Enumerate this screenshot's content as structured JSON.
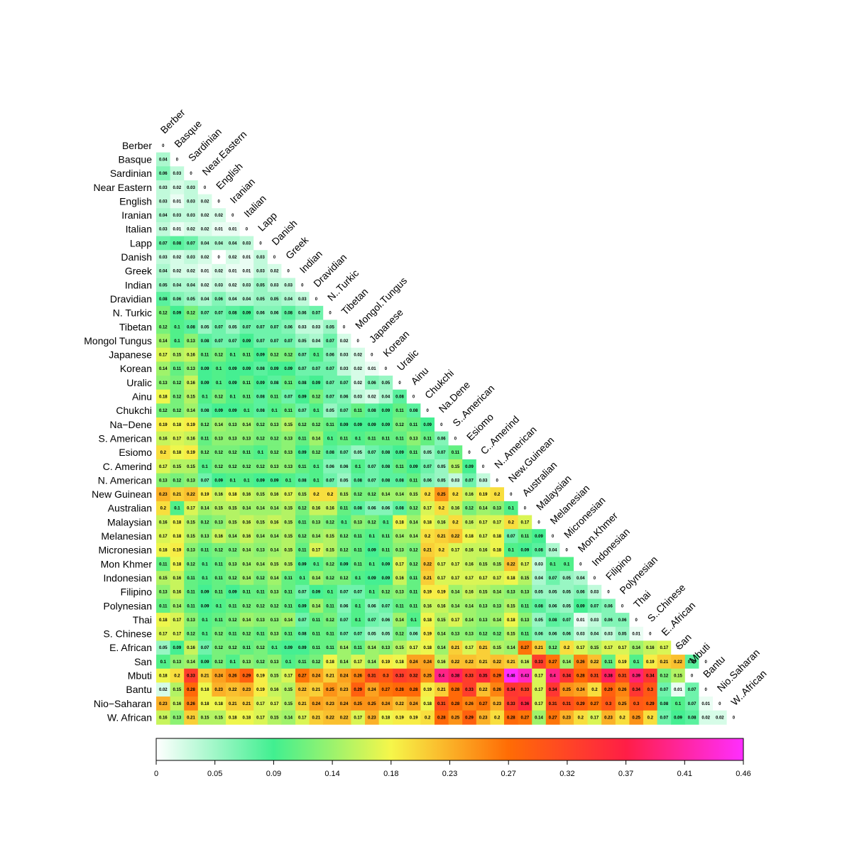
{
  "chart_data": {
    "type": "heatmap",
    "title": "",
    "labels": [
      "Berber",
      "Basque",
      "Sardinian",
      "Near Eastern",
      "English",
      "Iranian",
      "Italian",
      "Lapp",
      "Danish",
      "Greek",
      "Indian",
      "Dravidian",
      "N. Turkic",
      "Tibetan",
      "Mongol Tungus",
      "Japanese",
      "Korean",
      "Uralic",
      "Ainu",
      "Chukchi",
      "Na−Dene",
      "S. American",
      "Esiomo",
      "C. Amerind",
      "N. American",
      "New Guinean",
      "Australian",
      "Malaysian",
      "Melanesian",
      "Micronesian",
      "Mon Khmer",
      "Indonesian",
      "Filipino",
      "Polynesian",
      "Thai",
      "S. Chinese",
      "E. African",
      "San",
      "Mbuti",
      "Bantu",
      "Nio−Saharan",
      "W. African"
    ],
    "column_labels": [
      "Berber",
      "Basque",
      "Sardinian",
      "Near.Eastern",
      "English",
      "Iranian",
      "Italian",
      "Lapp",
      "Danish",
      "Greek",
      "Indian",
      "Dravidian",
      "N..Turkic",
      "Tibetan",
      "Mongol.Tungus",
      "Japanese",
      "Korean",
      "Uralic",
      "Ainu",
      "Chukchi",
      "Na.Dene",
      "S..American",
      "Esiomo",
      "C..Amerind",
      "N..American",
      "New.Guinean",
      "Australian",
      "Malaysian",
      "Melanesian",
      "Micronesian",
      "Mon.Khmer",
      "Indonesian",
      "Filipino",
      "Polynesian",
      "Thai",
      "S..Chinese",
      "E..African",
      "San",
      "Mbuti",
      "Bantu",
      "Nio.Saharan",
      "W..African"
    ],
    "values": [
      [
        0
      ],
      [
        0.04,
        0
      ],
      [
        0.06,
        0.03,
        0
      ],
      [
        0.03,
        0.02,
        0.03,
        0
      ],
      [
        0.03,
        0.01,
        0.03,
        0.02,
        0
      ],
      [
        0.04,
        0.03,
        0.03,
        0.02,
        0.02,
        0
      ],
      [
        0.03,
        0.01,
        0.02,
        0.02,
        0.01,
        0.01,
        0
      ],
      [
        0.07,
        0.08,
        0.07,
        0.04,
        0.04,
        0.04,
        0.03,
        0
      ],
      [
        0.03,
        0.02,
        0.03,
        0.02,
        0,
        0.02,
        0.01,
        0.03,
        0
      ],
      [
        0.04,
        0.02,
        0.02,
        0.01,
        0.02,
        0.01,
        0.01,
        0.03,
        0.02,
        0
      ],
      [
        0.05,
        0.04,
        0.04,
        0.02,
        0.03,
        0.02,
        0.03,
        0.05,
        0.03,
        0.03,
        0
      ],
      [
        0.08,
        0.06,
        0.05,
        0.04,
        0.06,
        0.04,
        0.04,
        0.05,
        0.05,
        0.04,
        0.03,
        0
      ],
      [
        0.12,
        0.09,
        0.12,
        0.07,
        0.07,
        0.08,
        0.09,
        0.06,
        0.06,
        0.08,
        0.06,
        0.07,
        0
      ],
      [
        0.12,
        0.1,
        0.08,
        0.05,
        0.07,
        0.05,
        0.07,
        0.07,
        0.07,
        0.06,
        0.03,
        0.03,
        0.05,
        0
      ],
      [
        0.14,
        0.1,
        0.13,
        0.08,
        0.07,
        0.07,
        0.09,
        0.07,
        0.07,
        0.07,
        0.05,
        0.04,
        0.07,
        0.02,
        0
      ],
      [
        0.17,
        0.15,
        0.16,
        0.11,
        0.12,
        0.1,
        0.11,
        0.09,
        0.12,
        0.12,
        0.07,
        0.1,
        0.06,
        0.03,
        0.02,
        0
      ],
      [
        0.14,
        0.11,
        0.13,
        0.09,
        0.1,
        0.09,
        0.09,
        0.08,
        0.09,
        0.09,
        0.07,
        0.07,
        0.07,
        0.03,
        0.02,
        0.01,
        0
      ],
      [
        0.13,
        0.12,
        0.16,
        0.09,
        0.1,
        0.09,
        0.11,
        0.09,
        0.08,
        0.11,
        0.08,
        0.09,
        0.07,
        0.07,
        0.02,
        0.06,
        0.05,
        0
      ],
      [
        0.18,
        0.12,
        0.15,
        0.1,
        0.12,
        0.1,
        0.11,
        0.08,
        0.11,
        0.07,
        0.09,
        0.12,
        0.07,
        0.06,
        0.03,
        0.02,
        0.04,
        0.08,
        0
      ],
      [
        0.12,
        0.12,
        0.14,
        0.08,
        0.09,
        0.09,
        0.1,
        0.08,
        0.1,
        0.11,
        0.07,
        0.1,
        0.05,
        0.07,
        0.11,
        0.08,
        0.09,
        0.11,
        0.08,
        0
      ],
      [
        0.19,
        0.18,
        0.19,
        0.12,
        0.14,
        0.13,
        0.14,
        0.12,
        0.13,
        0.15,
        0.12,
        0.12,
        0.11,
        0.09,
        0.09,
        0.09,
        0.09,
        0.12,
        0.11,
        0.09,
        0
      ],
      [
        0.16,
        0.17,
        0.16,
        0.11,
        0.13,
        0.13,
        0.13,
        0.12,
        0.12,
        0.13,
        0.11,
        0.14,
        0.1,
        0.11,
        0.1,
        0.11,
        0.11,
        0.11,
        0.13,
        0.11,
        0.06,
        0
      ],
      [
        0.2,
        0.18,
        0.19,
        0.12,
        0.12,
        0.12,
        0.11,
        0.1,
        0.12,
        0.13,
        0.09,
        0.12,
        0.08,
        0.07,
        0.05,
        0.07,
        0.08,
        0.09,
        0.11,
        0.05,
        0.07,
        0.11,
        0
      ],
      [
        0.17,
        0.15,
        0.15,
        0.1,
        0.12,
        0.12,
        0.12,
        0.12,
        0.13,
        0.13,
        0.11,
        0.1,
        0.06,
        0.06,
        0.1,
        0.07,
        0.08,
        0.11,
        0.09,
        0.07,
        0.05,
        0.15,
        0.09,
        0
      ],
      [
        0.13,
        0.12,
        0.13,
        0.07,
        0.09,
        0.1,
        0.1,
        0.09,
        0.09,
        0.1,
        0.08,
        0.1,
        0.07,
        0.05,
        0.08,
        0.07,
        0.08,
        0.08,
        0.11,
        0.06,
        0.05,
        0.03,
        0.07,
        0.03,
        0
      ],
      [
        0.23,
        0.21,
        0.22,
        0.19,
        0.16,
        0.18,
        0.16,
        0.15,
        0.16,
        0.17,
        0.15,
        0.2,
        0.2,
        0.15,
        0.12,
        0.12,
        0.14,
        0.14,
        0.15,
        0.2,
        0.25,
        0.2,
        0.16,
        0.19,
        0.2,
        0
      ],
      [
        0.2,
        0.1,
        0.17,
        0.14,
        0.15,
        0.15,
        0.14,
        0.14,
        0.14,
        0.15,
        0.12,
        0.16,
        0.16,
        0.11,
        0.08,
        0.06,
        0.06,
        0.08,
        0.12,
        0.17,
        0.2,
        0.16,
        0.12,
        0.14,
        0.13,
        0.1,
        0
      ],
      [
        0.16,
        0.18,
        0.15,
        0.12,
        0.13,
        0.15,
        0.16,
        0.15,
        0.16,
        0.15,
        0.11,
        0.13,
        0.12,
        0.1,
        0.13,
        0.12,
        0.1,
        0.18,
        0.14,
        0.18,
        0.16,
        0.2,
        0.16,
        0.17,
        0.17,
        0.2,
        0.17,
        0
      ],
      [
        0.17,
        0.18,
        0.15,
        0.13,
        0.16,
        0.14,
        0.16,
        0.14,
        0.14,
        0.15,
        0.12,
        0.14,
        0.15,
        0.12,
        0.11,
        0.1,
        0.11,
        0.14,
        0.14,
        0.2,
        0.21,
        0.22,
        0.18,
        0.17,
        0.18,
        0.07,
        0.11,
        0.09,
        0
      ],
      [
        0.18,
        0.19,
        0.13,
        0.11,
        0.12,
        0.12,
        0.14,
        0.13,
        0.14,
        0.15,
        0.11,
        0.17,
        0.15,
        0.12,
        0.11,
        0.09,
        0.11,
        0.13,
        0.12,
        0.21,
        0.2,
        0.17,
        0.16,
        0.16,
        0.18,
        0.1,
        0.09,
        0.08,
        0.04,
        0
      ],
      [
        0.11,
        0.18,
        0.12,
        0.1,
        0.11,
        0.13,
        0.14,
        0.14,
        0.15,
        0.15,
        0.09,
        0.1,
        0.12,
        0.09,
        0.11,
        0.1,
        0.09,
        0.17,
        0.12,
        0.22,
        0.17,
        0.17,
        0.16,
        0.15,
        0.15,
        0.22,
        0.17,
        0.03,
        0.1,
        0.1,
        0
      ],
      [
        0.15,
        0.16,
        0.11,
        0.1,
        0.11,
        0.12,
        0.14,
        0.12,
        0.14,
        0.11,
        0.1,
        0.14,
        0.12,
        0.12,
        0.1,
        0.09,
        0.09,
        0.16,
        0.11,
        0.21,
        0.17,
        0.17,
        0.17,
        0.17,
        0.17,
        0.18,
        0.15,
        0.04,
        0.07,
        0.05,
        0.04,
        0
      ],
      [
        0.13,
        0.16,
        0.11,
        0.09,
        0.11,
        0.09,
        0.11,
        0.11,
        0.13,
        0.11,
        0.07,
        0.09,
        0.1,
        0.07,
        0.07,
        0.1,
        0.12,
        0.13,
        0.11,
        0.19,
        0.19,
        0.14,
        0.16,
        0.15,
        0.14,
        0.13,
        0.13,
        0.05,
        0.05,
        0.05,
        0.06,
        0.03,
        0
      ],
      [
        0.11,
        0.14,
        0.11,
        0.09,
        0.1,
        0.11,
        0.12,
        0.12,
        0.12,
        0.11,
        0.09,
        0.14,
        0.11,
        0.06,
        0.1,
        0.06,
        0.07,
        0.11,
        0.11,
        0.16,
        0.16,
        0.14,
        0.14,
        0.13,
        0.13,
        0.15,
        0.11,
        0.08,
        0.06,
        0.05,
        0.09,
        0.07,
        0.06,
        0
      ],
      [
        0.18,
        0.17,
        0.13,
        0.1,
        0.11,
        0.12,
        0.14,
        0.13,
        0.13,
        0.14,
        0.07,
        0.11,
        0.12,
        0.07,
        0.1,
        0.07,
        0.06,
        0.14,
        0.1,
        0.18,
        0.15,
        0.17,
        0.14,
        0.13,
        0.14,
        0.18,
        0.13,
        0.05,
        0.08,
        0.07,
        0.01,
        0.03,
        0.06,
        0.06,
        0
      ],
      [
        0.17,
        0.17,
        0.12,
        0.1,
        0.12,
        0.11,
        0.12,
        0.11,
        0.13,
        0.11,
        0.08,
        0.11,
        0.11,
        0.07,
        0.07,
        0.05,
        0.05,
        0.12,
        0.06,
        0.19,
        0.14,
        0.13,
        0.13,
        0.12,
        0.12,
        0.15,
        0.11,
        0.06,
        0.06,
        0.06,
        0.03,
        0.04,
        0.03,
        0.05,
        0.01,
        0
      ],
      [
        0.05,
        0.09,
        0.16,
        0.07,
        0.12,
        0.12,
        0.11,
        0.12,
        0.1,
        0.09,
        0.09,
        0.11,
        0.11,
        0.14,
        0.11,
        0.14,
        0.13,
        0.15,
        0.17,
        0.18,
        0.14,
        0.21,
        0.17,
        0.21,
        0.15,
        0.14,
        0.27,
        0.21,
        0.12,
        0.2,
        0.17,
        0.15,
        0.17,
        0.17,
        0.14,
        0.16,
        0.17,
        0
      ],
      [
        0.1,
        0.13,
        0.14,
        0.09,
        0.12,
        0.1,
        0.13,
        0.12,
        0.13,
        0.1,
        0.11,
        0.12,
        0.18,
        0.14,
        0.17,
        0.14,
        0.19,
        0.18,
        0.24,
        0.24,
        0.16,
        0.22,
        0.22,
        0.21,
        0.22,
        0.21,
        0.16,
        0.33,
        0.27,
        0.14,
        0.26,
        0.22,
        0.11,
        0.19,
        0.1,
        0.19,
        0.21,
        0.22,
        0.08,
        0
      ],
      [
        0.18,
        0.2,
        0.33,
        0.21,
        0.24,
        0.26,
        0.29,
        0.19,
        0.15,
        0.17,
        0.27,
        0.24,
        0.21,
        0.24,
        0.26,
        0.31,
        0.3,
        0.33,
        0.32,
        0.25,
        0.4,
        0.38,
        0.33,
        0.35,
        0.29,
        0.46,
        0.43,
        0.17,
        0.4,
        0.34,
        0.28,
        0.31,
        0.38,
        0.31,
        0.39,
        0.34,
        0.12,
        0.15,
        0
      ],
      [
        0.02,
        0.15,
        0.28,
        0.18,
        0.23,
        0.22,
        0.23,
        0.19,
        0.16,
        0.15,
        0.22,
        0.21,
        0.25,
        0.23,
        0.29,
        0.24,
        0.27,
        0.28,
        0.28,
        0.19,
        0.21,
        0.28,
        0.33,
        0.22,
        0.26,
        0.34,
        0.33,
        0.17,
        0.34,
        0.25,
        0.24,
        0.2,
        0.29,
        0.26,
        0.34,
        0.3,
        0.07,
        0.01,
        0.07,
        0
      ],
      [
        0.23,
        0.16,
        0.26,
        0.18,
        0.18,
        0.21,
        0.21,
        0.17,
        0.17,
        0.15,
        0.21,
        0.24,
        0.23,
        0.24,
        0.25,
        0.25,
        0.24,
        0.22,
        0.24,
        0.18,
        0.31,
        0.28,
        0.26,
        0.27,
        0.23,
        0.33,
        0.36,
        0.17,
        0.31,
        0.31,
        0.29,
        0.27,
        0.3,
        0.25,
        0.3,
        0.29,
        0.08,
        0.1,
        0.07,
        0.01,
        0
      ],
      [
        0.16,
        0.13,
        0.21,
        0.15,
        0.15,
        0.18,
        0.18,
        0.17,
        0.15,
        0.14,
        0.17,
        0.21,
        0.22,
        0.22,
        0.17,
        0.23,
        0.18,
        0.19,
        0.19,
        0.2,
        0.28,
        0.25,
        0.29,
        0.23,
        0.2,
        0.28,
        0.27,
        0.14,
        0.27,
        0.23,
        0.2,
        0.17,
        0.23,
        0.2,
        0.25,
        0.2,
        0.07,
        0.09,
        0.08,
        0.02,
        0.02,
        0
      ]
    ],
    "colorbar": {
      "min": 0,
      "max": 0.46,
      "tick_labels": [
        "0",
        "0.05",
        "0.09",
        "0.14",
        "0.18",
        "0.23",
        "0.27",
        "0.32",
        "0.37",
        "0.41",
        "0.46"
      ],
      "colors": [
        "#ffffff",
        "#41ef90",
        "#f6f64a",
        "#ff6c05",
        "#ff1e46",
        "#ff2eff"
      ]
    },
    "legend": "bottom colorbar"
  }
}
